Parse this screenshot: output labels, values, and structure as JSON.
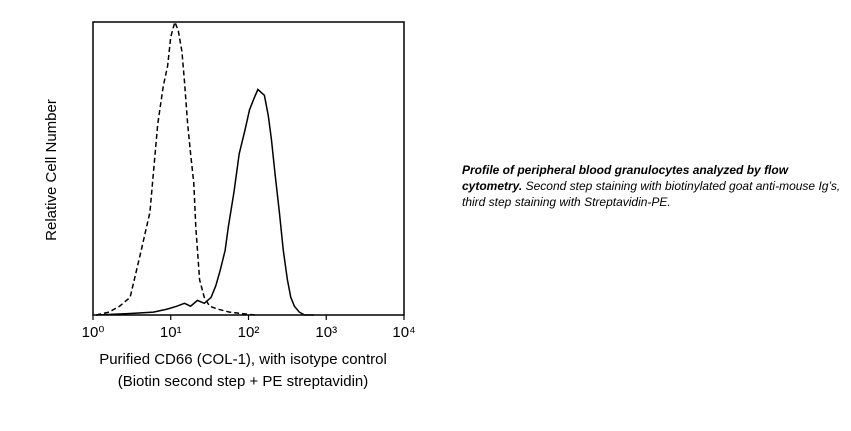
{
  "chart_data": {
    "type": "line",
    "xlabel": [
      "Purified CD66 (COL-1), with isotype control",
      "(Biotin second step + PE streptavidin)"
    ],
    "ylabel": "Relative Cell Number",
    "xscale": "log",
    "xlim": [
      1,
      10000
    ],
    "xticks": [
      {
        "value": 1,
        "label": "10⁰"
      },
      {
        "value": 10,
        "label": "10¹"
      },
      {
        "value": 100,
        "label": "10²"
      },
      {
        "value": 1000,
        "label": "10³"
      },
      {
        "value": 10000,
        "label": "10⁴"
      }
    ],
    "ylim": [
      0,
      100
    ],
    "series": [
      {
        "color": "#000000",
        "dash": "dashed",
        "x": [
          1.1,
          1.6,
          2.2,
          3,
          4,
          5.4,
          6.8,
          8,
          9.1,
          10,
          11.3,
          12.5,
          13.9,
          15,
          16.5,
          18,
          19.8,
          21,
          23.5,
          27,
          31.6,
          40,
          57,
          80,
          120
        ],
        "values": [
          0,
          1,
          3,
          6,
          20,
          35,
          65,
          78,
          85,
          95,
          100,
          97,
          90,
          80,
          65,
          55,
          45,
          30,
          12,
          6,
          3,
          2,
          1,
          0.5,
          0
        ]
      },
      {
        "color": "#000000",
        "dash": "solid",
        "x": [
          1.1,
          3,
          6,
          9,
          12,
          15,
          18,
          22,
          27,
          33,
          38,
          43,
          50,
          55,
          65,
          76,
          90,
          103,
          118,
          132,
          145,
          160,
          180,
          197,
          220,
          250,
          280,
          316,
          350,
          389,
          450,
          525,
          700
        ],
        "values": [
          0,
          0.5,
          1,
          2,
          3,
          4,
          3,
          5,
          4,
          6,
          10,
          15,
          22,
          30,
          42,
          55,
          63,
          70,
          74,
          77,
          76,
          75,
          68,
          60,
          48,
          35,
          22,
          12,
          6,
          3,
          1,
          0,
          0
        ]
      }
    ],
    "annotation": {
      "bold": "Profile of peripheral blood granulocytes analyzed by flow cytometry.",
      "text": "Second step staining with biotinylated goat anti-mouse Ig’s, third step staining with Streptavidin-PE."
    }
  }
}
